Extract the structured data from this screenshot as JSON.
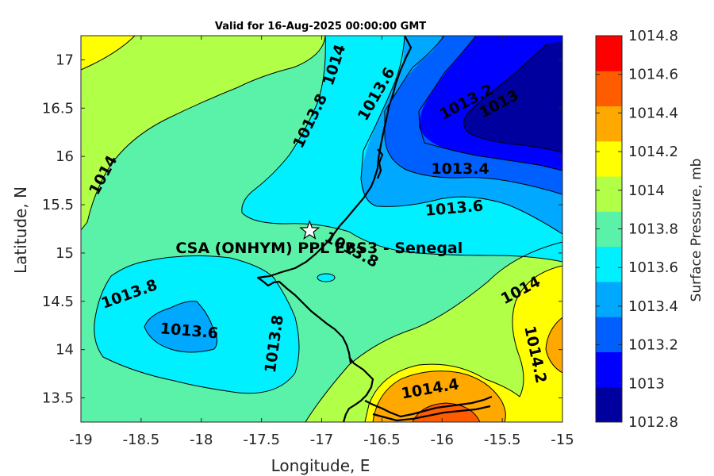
{
  "chart_data": {
    "type": "contour",
    "title": "Valid for 16-Aug-2025 00:00:00 GMT",
    "xlabel": "Longitude, E",
    "ylabel": "Latitude, N",
    "xlim": [
      -19,
      -15
    ],
    "ylim": [
      13.25,
      17.25
    ],
    "xticks": [
      -19,
      -18.5,
      -18,
      -17.5,
      -17,
      -16.5,
      -16,
      -15.5,
      -15
    ],
    "yticks": [
      13.5,
      14,
      14.5,
      15,
      15.5,
      16,
      16.5,
      17
    ],
    "colorbar": {
      "title": "Surface Pressure, mb",
      "levels": [
        1012.8,
        1013,
        1013.2,
        1013.4,
        1013.6,
        1013.8,
        1014,
        1014.2,
        1014.4,
        1014.6,
        1014.8
      ],
      "colors": [
        "#00009f",
        "#0000ff",
        "#0060ff",
        "#00a8ff",
        "#00f0ff",
        "#5af2a8",
        "#b2ff48",
        "#ffff00",
        "#ffa800",
        "#ff5c00",
        "#ff0000"
      ]
    },
    "contour_labels": [
      {
        "text": "1014",
        "lon": -16.9,
        "lat": 16.95
      },
      {
        "text": "1013.8",
        "lon": -17.1,
        "lat": 16.37
      },
      {
        "text": "1013.6",
        "lon": -16.55,
        "lat": 16.65
      },
      {
        "text": "1013.2",
        "lon": -15.8,
        "lat": 16.57
      },
      {
        "text": "1013",
        "lon": -15.53,
        "lat": 16.55
      },
      {
        "text": "1014",
        "lon": -18.82,
        "lat": 15.81
      },
      {
        "text": "1013.4",
        "lon": -15.85,
        "lat": 15.88
      },
      {
        "text": "1013.6",
        "lon": -15.9,
        "lat": 15.47
      },
      {
        "text": "1013.8",
        "lon": -16.75,
        "lat": 15.04
      },
      {
        "text": "1013.8",
        "lon": -18.6,
        "lat": 14.58
      },
      {
        "text": "1013.6",
        "lon": -18.1,
        "lat": 14.2
      },
      {
        "text": "1013.8",
        "lon": -17.4,
        "lat": 14.06
      },
      {
        "text": "1014",
        "lon": -15.35,
        "lat": 14.62
      },
      {
        "text": "1014.2",
        "lon": -15.22,
        "lat": 13.95
      },
      {
        "text": "1014.4",
        "lon": -16.1,
        "lat": 13.6
      }
    ],
    "site": {
      "name": "CSA (ONHYM) PPL EBS3 - Senegal",
      "lon": -17.1,
      "lat": 15.23
    }
  }
}
